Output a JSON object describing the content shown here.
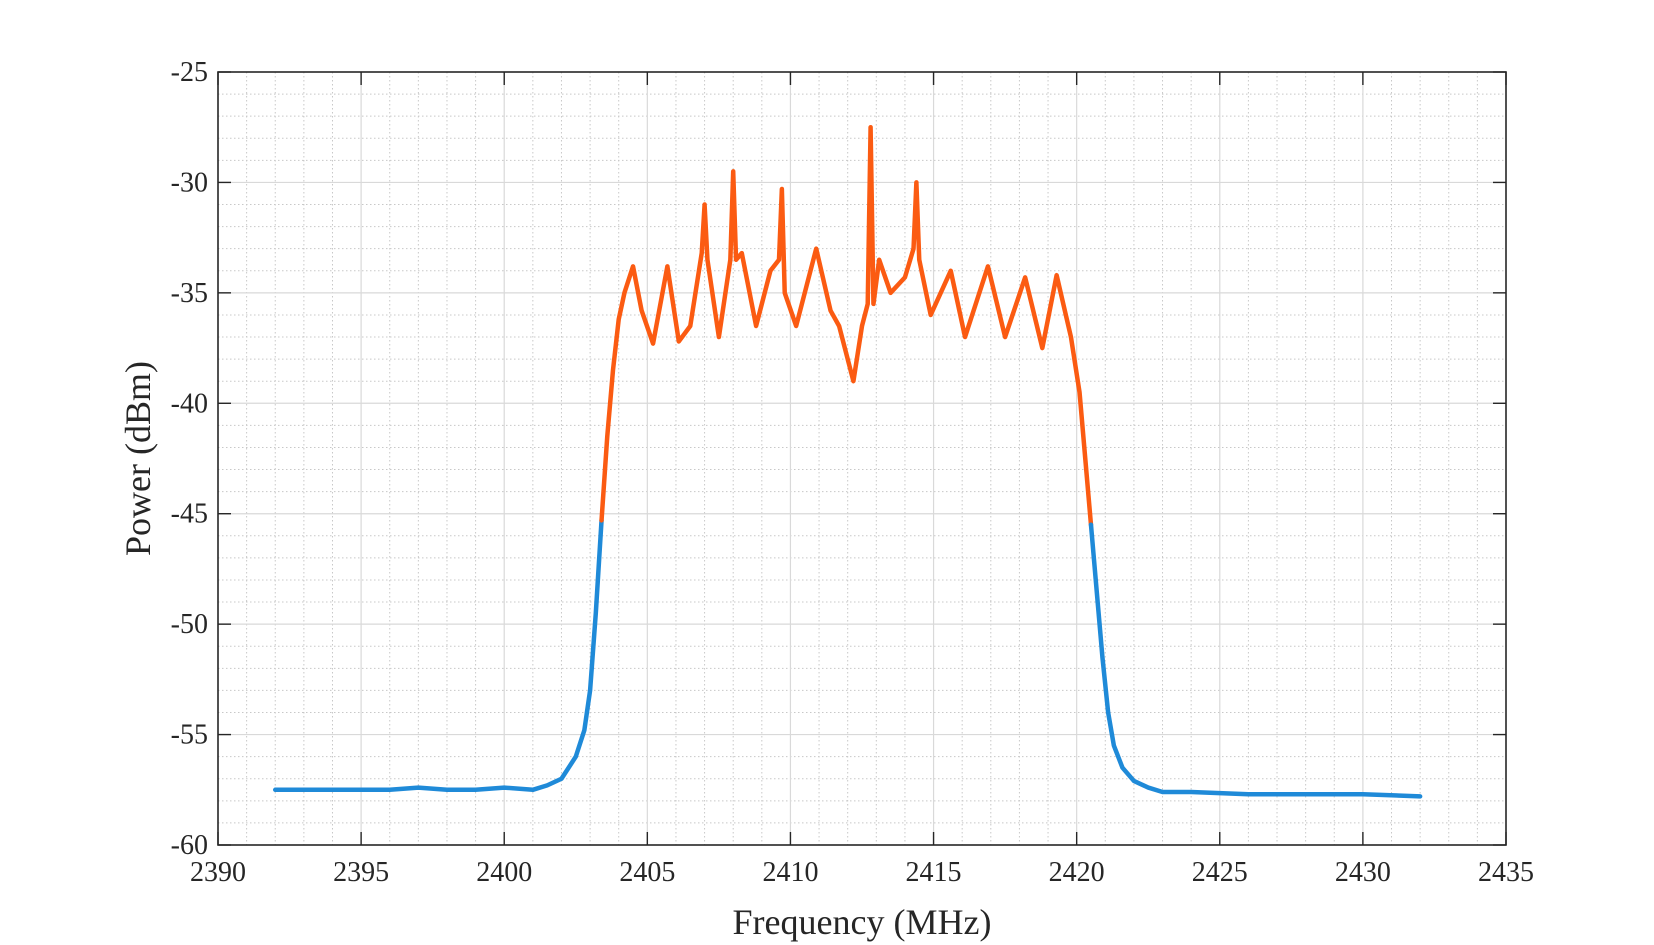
{
  "chart_data": {
    "type": "line",
    "xlabel": "Frequency (MHz)",
    "ylabel": "Power (dBm)",
    "xlim": [
      2390,
      2435
    ],
    "ylim": [
      -60,
      -25
    ],
    "xticks": [
      2390,
      2395,
      2400,
      2405,
      2410,
      2415,
      2420,
      2425,
      2430,
      2435
    ],
    "yticks": [
      -25,
      -30,
      -35,
      -40,
      -45,
      -50,
      -55,
      -60
    ],
    "grid": true,
    "minor_grid": true,
    "legend": "none",
    "series": [
      {
        "color": "#1f8ad8",
        "x": [
          2392,
          2394,
          2396,
          2397,
          2398,
          2399,
          2400,
          2401,
          2401.5,
          2402,
          2402.5,
          2402.8,
          2403,
          2403.2,
          2403.4
        ],
        "y": [
          -57.5,
          -57.5,
          -57.5,
          -57.4,
          -57.5,
          -57.5,
          -57.4,
          -57.5,
          -57.3,
          -57.0,
          -56.0,
          -54.8,
          -53.0,
          -49.5,
          -45.3
        ]
      },
      {
        "color": "#fb5b12",
        "x": [
          2403.4,
          2403.6,
          2403.8,
          2404.0,
          2404.2,
          2404.5,
          2404.8,
          2405.2,
          2405.7,
          2406.1,
          2406.5,
          2406.9,
          2407.0,
          2407.1,
          2407.5,
          2407.9,
          2408.0,
          2408.1,
          2408.3,
          2408.8,
          2409.3,
          2409.6,
          2409.7,
          2409.8,
          2410.2,
          2410.9,
          2411.4,
          2411.7,
          2411.9,
          2412.2,
          2412.5,
          2412.7,
          2412.8,
          2412.9,
          2413.1,
          2413.5,
          2414.0,
          2414.3,
          2414.4,
          2414.5,
          2414.9,
          2415.6,
          2416.1,
          2416.9,
          2417.5,
          2418.2,
          2418.8,
          2419.3,
          2419.8,
          2420.1,
          2420.3,
          2420.5
        ],
        "y": [
          -45.3,
          -41.5,
          -38.5,
          -36.2,
          -35.0,
          -33.8,
          -35.8,
          -37.3,
          -33.8,
          -37.2,
          -36.5,
          -33.2,
          -31.0,
          -33.5,
          -37.0,
          -33.5,
          -29.5,
          -33.5,
          -33.2,
          -36.5,
          -34.0,
          -33.5,
          -30.3,
          -35.0,
          -36.5,
          -33.0,
          -35.8,
          -36.5,
          -37.5,
          -39.0,
          -36.5,
          -35.5,
          -27.5,
          -35.5,
          -33.5,
          -35.0,
          -34.3,
          -33.0,
          -30.0,
          -33.5,
          -36.0,
          -34.0,
          -37.0,
          -33.8,
          -37.0,
          -34.3,
          -37.5,
          -34.2,
          -37.0,
          -39.5,
          -42.5,
          -45.5
        ]
      },
      {
        "color": "#1f8ad8",
        "x": [
          2420.5,
          2420.7,
          2420.9,
          2421.1,
          2421.3,
          2421.6,
          2422.0,
          2422.5,
          2423,
          2424,
          2426,
          2428,
          2430,
          2432
        ],
        "y": [
          -45.5,
          -48.5,
          -51.5,
          -54.0,
          -55.5,
          -56.5,
          -57.1,
          -57.4,
          -57.6,
          -57.6,
          -57.7,
          -57.7,
          -57.7,
          -57.8
        ]
      }
    ]
  }
}
